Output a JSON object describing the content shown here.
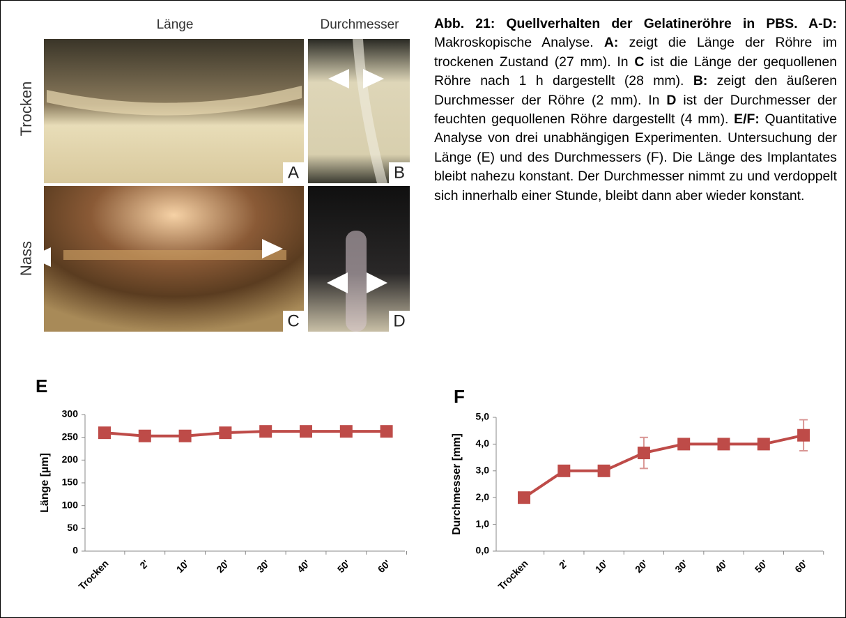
{
  "figure": {
    "column_headers": [
      "Länge",
      "Durchmesser"
    ],
    "row_labels": [
      "Trocken",
      "Nass"
    ],
    "panels": [
      "A",
      "B",
      "C",
      "D"
    ]
  },
  "caption": [
    {
      "text": "Abb. 21: Quellverhalten der Gelatineröhre in PBS. A-D:",
      "bold": true
    },
    {
      "text": " Makroskopische Analyse. ",
      "bold": false
    },
    {
      "text": "A:",
      "bold": true
    },
    {
      "text": " zeigt die Länge der Röhre im trockenen Zustand (27 mm). In ",
      "bold": false
    },
    {
      "text": "C",
      "bold": true
    },
    {
      "text": " ist die Länge der gequollenen Röhre nach 1 h dargestellt (28 mm). ",
      "bold": false
    },
    {
      "text": "B:",
      "bold": true
    },
    {
      "text": " zeigt den äußeren Durchmesser der Röhre (2 mm). In ",
      "bold": false
    },
    {
      "text": "D",
      "bold": true
    },
    {
      "text": " ist der Durchmesser der feuchten gequollenen Röhre dargestellt (4 mm). ",
      "bold": false
    },
    {
      "text": "E/F:",
      "bold": true
    },
    {
      "text": " Quantitative Analyse von drei unabhängigen Experimenten. Untersuchung der Länge (E) und des Durchmessers (F). Die Länge des Implantates bleibt nahezu konstant. Der Durchmesser nimmt zu und verdoppelt sich innerhalb einer Stunde, bleibt dann aber wieder konstant.",
      "bold": false
    }
  ],
  "chart_data": [
    {
      "type": "line",
      "title": "E",
      "y_label": "Länge [µm]",
      "color": "#be4b48",
      "categories": [
        "Trocken",
        "2'",
        "10'",
        "20'",
        "30'",
        "40'",
        "50'",
        "60'"
      ],
      "values": [
        260,
        253,
        253,
        260,
        263,
        263,
        263,
        263
      ],
      "ylim": [
        0,
        300
      ],
      "yticks": [
        0,
        50,
        100,
        150,
        200,
        250,
        300
      ]
    },
    {
      "type": "line",
      "title": "F",
      "y_label": "Durchmesser [mm]",
      "color": "#be4b48",
      "error_color": "#d99694",
      "categories": [
        "Trocken",
        "2'",
        "10'",
        "20'",
        "30'",
        "40'",
        "50'",
        "60'"
      ],
      "values": [
        2,
        3,
        3,
        3.67,
        4,
        4,
        4,
        4.33
      ],
      "errors": [
        0,
        0,
        0,
        0.58,
        0,
        0,
        0,
        0.58
      ],
      "ylim": [
        0,
        5
      ],
      "yticks": [
        {
          "value": 0,
          "label": "0,0"
        },
        {
          "value": 1,
          "label": "1,0"
        },
        {
          "value": 2,
          "label": "2,0"
        },
        {
          "value": 3,
          "label": "3,0"
        },
        {
          "value": 4,
          "label": "4,0"
        },
        {
          "value": 5,
          "label": "5,0"
        }
      ]
    }
  ]
}
